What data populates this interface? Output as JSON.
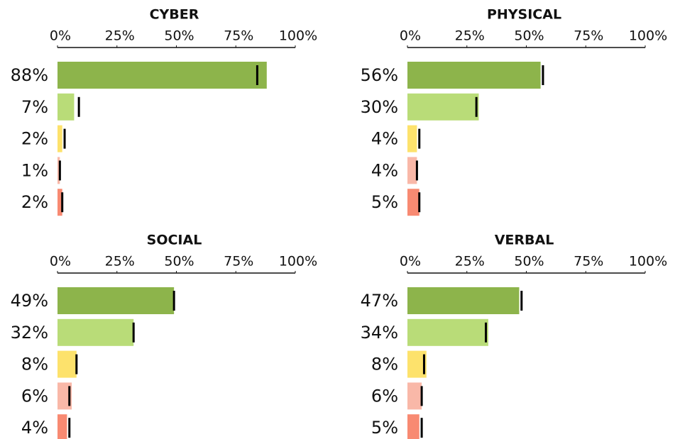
{
  "chart_data": [
    {
      "type": "bar",
      "title": "CYBER",
      "values": [
        88,
        7,
        2,
        1,
        2
      ],
      "value_labels": [
        "88%",
        "7%",
        "2%",
        "1%",
        "2%"
      ],
      "markers": [
        84,
        9,
        3,
        1,
        2
      ],
      "colors": [
        "#8db44b",
        "#b9dc78",
        "#fde26c",
        "#f9b8a8",
        "#f88a72"
      ],
      "xlim": [
        0,
        100
      ],
      "xticks": [
        {
          "value": 0,
          "label": "0%"
        },
        {
          "value": 25,
          "label": "25%"
        },
        {
          "value": 50,
          "label": "50%"
        },
        {
          "value": 75,
          "label": "75%"
        },
        {
          "value": 100,
          "label": "100%"
        }
      ]
    },
    {
      "type": "bar",
      "title": "PHYSICAL",
      "values": [
        56,
        30,
        4,
        4,
        5
      ],
      "value_labels": [
        "56%",
        "30%",
        "4%",
        "4%",
        "5%"
      ],
      "markers": [
        57,
        29,
        5,
        4,
        5
      ],
      "colors": [
        "#8db44b",
        "#b9dc78",
        "#fde26c",
        "#f9b8a8",
        "#f88a72"
      ],
      "xlim": [
        0,
        100
      ],
      "xticks": [
        {
          "value": 0,
          "label": "0%"
        },
        {
          "value": 25,
          "label": "25%"
        },
        {
          "value": 50,
          "label": "50%"
        },
        {
          "value": 75,
          "label": "75%"
        },
        {
          "value": 100,
          "label": "100%"
        }
      ]
    },
    {
      "type": "bar",
      "title": "SOCIAL",
      "values": [
        49,
        32,
        8,
        6,
        4
      ],
      "value_labels": [
        "49%",
        "32%",
        "8%",
        "6%",
        "4%"
      ],
      "markers": [
        49,
        32,
        8,
        5,
        5
      ],
      "colors": [
        "#8db44b",
        "#b9dc78",
        "#fde26c",
        "#f9b8a8",
        "#f88a72"
      ],
      "xlim": [
        0,
        100
      ],
      "xticks": [
        {
          "value": 0,
          "label": "0%"
        },
        {
          "value": 25,
          "label": "25%"
        },
        {
          "value": 50,
          "label": "50%"
        },
        {
          "value": 75,
          "label": "75%"
        },
        {
          "value": 100,
          "label": "100%"
        }
      ]
    },
    {
      "type": "bar",
      "title": "VERBAL",
      "values": [
        47,
        34,
        8,
        6,
        5
      ],
      "value_labels": [
        "47%",
        "34%",
        "8%",
        "6%",
        "5%"
      ],
      "markers": [
        48,
        33,
        7,
        6,
        6
      ],
      "colors": [
        "#8db44b",
        "#b9dc78",
        "#fde26c",
        "#f9b8a8",
        "#f88a72"
      ],
      "xlim": [
        0,
        100
      ],
      "xticks": [
        {
          "value": 0,
          "label": "0%"
        },
        {
          "value": 25,
          "label": "25%"
        },
        {
          "value": 50,
          "label": "50%"
        },
        {
          "value": 75,
          "label": "75%"
        },
        {
          "value": 100,
          "label": "100%"
        }
      ]
    }
  ]
}
